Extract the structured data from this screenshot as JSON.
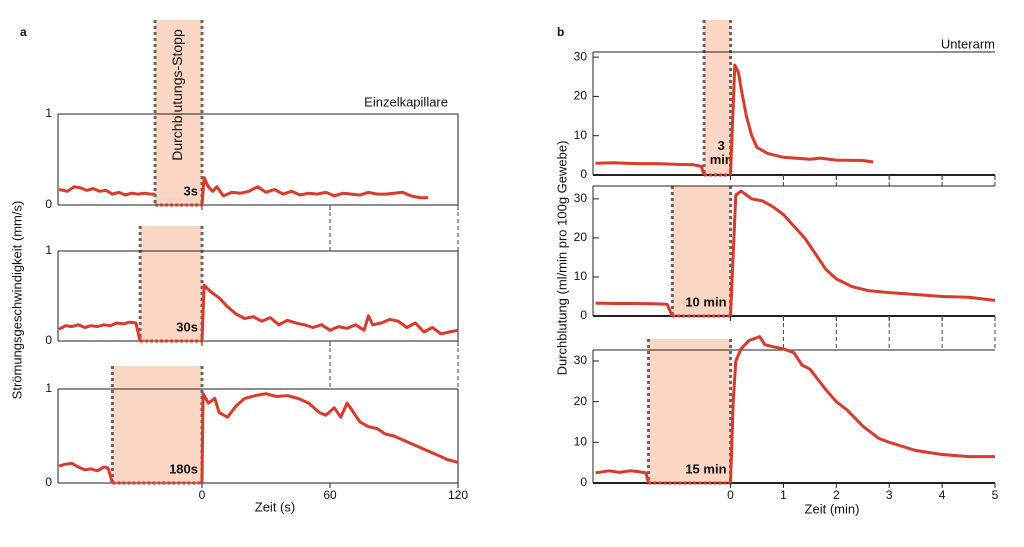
{
  "panels": [
    {
      "label": "a",
      "title": "Einzelkapillare",
      "xlabel": "Zeit (s)",
      "ylabel": "Strömungsgeschwindigkeit (mm/s)",
      "stop_label": "Durchblutungs-Stopp"
    },
    {
      "label": "b",
      "title": "Unterarm",
      "xlabel": "Zeit (min)",
      "ylabel": "Durchblutung (ml/min pro 100g Gewebe)"
    }
  ],
  "chart_data": [
    {
      "type": "line",
      "panel": 0,
      "xlim": [
        -67.5,
        120
      ],
      "ylim": [
        0,
        1
      ],
      "xticks": [
        0,
        60,
        120
      ],
      "yticks": [
        0,
        1
      ],
      "xtick_labels": false,
      "shade": [
        -22,
        0
      ],
      "shade_color": "#fcd6c4",
      "label": "3s",
      "series": [
        {
          "color": "#d93a2b",
          "x": [
            -67,
            -63,
            -60,
            -57,
            -54,
            -51,
            -48,
            -45,
            -42,
            -39,
            -36,
            -33,
            -30,
            -27,
            -24,
            -22
          ],
          "values": [
            0.17,
            0.15,
            0.2,
            0.19,
            0.16,
            0.18,
            0.15,
            0.16,
            0.12,
            0.14,
            0.11,
            0.13,
            0.12,
            0.13,
            0.12,
            0.12
          ]
        },
        {
          "color": "#d93a2b",
          "x": [
            0,
            1,
            3,
            5,
            7,
            10,
            14,
            18,
            22,
            26,
            30,
            34,
            38,
            42,
            46,
            50,
            54,
            58,
            62,
            66,
            70,
            74,
            78,
            82,
            86,
            90,
            94,
            98,
            102,
            106
          ],
          "values": [
            0,
            0.3,
            0.2,
            0.15,
            0.2,
            0.1,
            0.14,
            0.13,
            0.15,
            0.2,
            0.14,
            0.17,
            0.12,
            0.15,
            0.11,
            0.13,
            0.12,
            0.14,
            0.1,
            0.13,
            0.12,
            0.11,
            0.14,
            0.12,
            0.12,
            0.13,
            0.14,
            0.1,
            0.08,
            0.08
          ]
        },
        {
          "color": "#d93a2b",
          "style": "dotted",
          "x": [
            -22,
            0
          ],
          "values": [
            0,
            0
          ]
        }
      ]
    },
    {
      "type": "line",
      "panel": 0,
      "xlim": [
        -67.5,
        120
      ],
      "ylim": [
        0,
        1
      ],
      "xticks": [
        0,
        60,
        120
      ],
      "yticks": [
        0,
        1
      ],
      "xtick_labels": false,
      "shade": [
        -29,
        0
      ],
      "shade_color": "#fcd6c4",
      "label": "30s",
      "series": [
        {
          "color": "#d93a2b",
          "x": [
            -67,
            -64,
            -61,
            -58,
            -55,
            -52,
            -49,
            -46,
            -43,
            -40,
            -37,
            -34,
            -31,
            -29
          ],
          "values": [
            0.13,
            0.17,
            0.16,
            0.18,
            0.15,
            0.17,
            0.16,
            0.18,
            0.17,
            0.2,
            0.19,
            0.21,
            0.2,
            0
          ]
        },
        {
          "color": "#d93a2b",
          "x": [
            0,
            1,
            4,
            8,
            12,
            16,
            20,
            24,
            28,
            32,
            36,
            40,
            44,
            48,
            52,
            56,
            60,
            64,
            68,
            72,
            76,
            78,
            80,
            84,
            88,
            92,
            96,
            100,
            104,
            108,
            112,
            116,
            120
          ],
          "values": [
            0,
            0.62,
            0.55,
            0.48,
            0.38,
            0.3,
            0.25,
            0.27,
            0.22,
            0.26,
            0.18,
            0.23,
            0.2,
            0.18,
            0.15,
            0.18,
            0.12,
            0.16,
            0.14,
            0.18,
            0.12,
            0.28,
            0.18,
            0.2,
            0.24,
            0.22,
            0.15,
            0.2,
            0.1,
            0.15,
            0.08,
            0.1,
            0.12
          ]
        },
        {
          "color": "#d93a2b",
          "style": "dotted",
          "x": [
            -29,
            0
          ],
          "values": [
            0,
            0
          ]
        }
      ]
    },
    {
      "type": "line",
      "panel": 0,
      "xlim": [
        -67.5,
        120
      ],
      "ylim": [
        0,
        1
      ],
      "xticks": [
        0,
        60,
        120
      ],
      "yticks": [
        0,
        1
      ],
      "xtick_labels": true,
      "shade": [
        -42,
        0
      ],
      "shade_color": "#fcd6c4",
      "label": "180s",
      "series": [
        {
          "color": "#d93a2b",
          "x": [
            -67,
            -64,
            -61,
            -58,
            -55,
            -52,
            -49,
            -46,
            -44,
            -42
          ],
          "values": [
            0.18,
            0.2,
            0.21,
            0.17,
            0.14,
            0.15,
            0.13,
            0.17,
            0.16,
            0
          ]
        },
        {
          "color": "#d93a2b",
          "x": [
            0,
            0.5,
            3,
            6,
            8,
            12,
            16,
            20,
            25,
            30,
            35,
            40,
            45,
            50,
            55,
            58,
            62,
            65,
            68,
            71,
            74,
            78,
            82,
            86,
            90,
            95,
            100,
            105,
            110,
            115,
            120
          ],
          "values": [
            0,
            0.95,
            0.85,
            0.9,
            0.75,
            0.7,
            0.82,
            0.9,
            0.93,
            0.95,
            0.92,
            0.93,
            0.9,
            0.85,
            0.75,
            0.72,
            0.8,
            0.7,
            0.85,
            0.75,
            0.65,
            0.6,
            0.58,
            0.52,
            0.5,
            0.45,
            0.4,
            0.35,
            0.3,
            0.25,
            0.22
          ]
        },
        {
          "color": "#d93a2b",
          "style": "dotted",
          "x": [
            -42,
            0
          ],
          "values": [
            0,
            0
          ]
        }
      ]
    },
    {
      "type": "line",
      "panel": 1,
      "xlim": [
        -2.6,
        5
      ],
      "ylim": [
        0,
        31.3
      ],
      "xticks": [
        0,
        1,
        2,
        3,
        4,
        5
      ],
      "yticks": [
        0,
        10,
        20,
        30
      ],
      "xtick_labels": false,
      "shade": [
        -0.5,
        0
      ],
      "shade_color": "#fcd6c4",
      "label_lines": [
        "3",
        "min"
      ],
      "series": [
        {
          "color": "#d93a2b",
          "x": [
            -2.55,
            -2.2,
            -1.8,
            -1.4,
            -1.0,
            -0.7,
            -0.55,
            -0.5
          ],
          "values": [
            3,
            3.1,
            2.9,
            2.9,
            2.7,
            2.6,
            2.2,
            0
          ]
        },
        {
          "color": "#d93a2b",
          "x": [
            0,
            0.08,
            0.15,
            0.2,
            0.3,
            0.4,
            0.5,
            0.7,
            1,
            1.5,
            1.7,
            2,
            2.5,
            2.7
          ],
          "values": [
            0,
            28,
            26,
            22,
            15,
            10,
            7,
            5.5,
            4.5,
            4,
            4.3,
            3.8,
            3.7,
            3.3
          ]
        },
        {
          "color": "#d93a2b",
          "style": "dotted",
          "x": [
            -0.5,
            0
          ],
          "values": [
            0,
            0
          ]
        }
      ]
    },
    {
      "type": "line",
      "panel": 1,
      "xlim": [
        -2.6,
        5
      ],
      "ylim": [
        0,
        33.3
      ],
      "xticks": [
        0,
        1,
        2,
        3,
        4,
        5
      ],
      "yticks": [
        0,
        10,
        20,
        30
      ],
      "xtick_labels": false,
      "shade": [
        -1.1,
        0
      ],
      "shade_color": "#fcd6c4",
      "label": "10 min",
      "series": [
        {
          "color": "#d93a2b",
          "x": [
            -2.55,
            -2.2,
            -1.8,
            -1.4,
            -1.2,
            -1.1
          ],
          "values": [
            3.3,
            3.2,
            3.2,
            3.1,
            3,
            0
          ]
        },
        {
          "color": "#d93a2b",
          "x": [
            0,
            0.1,
            0.2,
            0.4,
            0.6,
            0.8,
            1,
            1.2,
            1.4,
            1.6,
            1.8,
            2,
            2.3,
            2.6,
            3,
            3.5,
            4,
            4.5,
            5
          ],
          "values": [
            0,
            31,
            32,
            30,
            29.5,
            28,
            26,
            23,
            20,
            16,
            12,
            9.5,
            7.5,
            6.5,
            6,
            5.5,
            5,
            4.8,
            4
          ]
        },
        {
          "color": "#d93a2b",
          "style": "dotted",
          "x": [
            -1.1,
            0
          ],
          "values": [
            0,
            0
          ]
        }
      ]
    },
    {
      "type": "line",
      "panel": 1,
      "xlim": [
        -2.6,
        5
      ],
      "ylim": [
        0,
        32.7
      ],
      "xticks": [
        0,
        1,
        2,
        3,
        4,
        5
      ],
      "yticks": [
        0,
        10,
        20,
        30
      ],
      "xtick_labels": true,
      "shade": [
        -1.55,
        0
      ],
      "shade_color": "#fcd6c4",
      "label": "15 min",
      "series": [
        {
          "color": "#d93a2b",
          "x": [
            -2.55,
            -2.3,
            -2.1,
            -1.9,
            -1.75,
            -1.6,
            -1.55
          ],
          "values": [
            2.5,
            3,
            2.6,
            3,
            2.8,
            2.5,
            0
          ]
        },
        {
          "color": "#d93a2b",
          "x": [
            0,
            0.05,
            0.1,
            0.2,
            0.35,
            0.55,
            0.65,
            0.8,
            1,
            1.2,
            1.35,
            1.5,
            1.8,
            2,
            2.2,
            2.5,
            2.8,
            3,
            3.5,
            4,
            4.5,
            5
          ],
          "values": [
            0,
            20,
            30,
            33,
            35,
            36,
            34,
            33.5,
            33,
            32,
            29,
            28,
            23,
            20,
            18,
            14,
            11,
            10,
            8,
            7,
            6.5,
            6.5
          ]
        },
        {
          "color": "#d93a2b",
          "style": "dotted",
          "x": [
            -1.55,
            0
          ],
          "values": [
            0,
            0
          ]
        }
      ]
    }
  ]
}
